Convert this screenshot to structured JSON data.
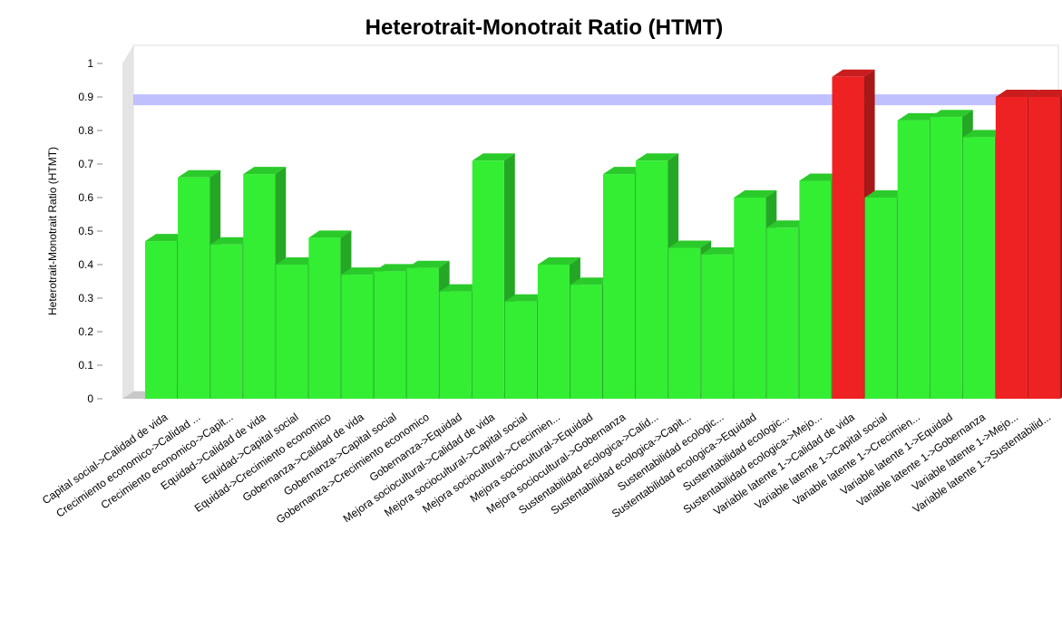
{
  "chart_data": {
    "type": "bar3d",
    "title": "Heterotrait-Monotrait Ratio (HTMT)",
    "y_label": "Heterotrait-Monotrait Ratio (HTMT)",
    "categories": [
      "Capital social->Calidad de vida",
      "Crecimiento economico->Calidad ...",
      "Crecimiento economico->Capit...",
      "Equidad->Calidad de vida",
      "Equidad->Capital social",
      "Equidad->Crecimiento economico",
      "Gobernanza->Calidad de vida",
      "Gobernanza->Capital social",
      "Gobernanza->Crecimiento economico",
      "Gobernanza->Equidad",
      "Mejora sociocultural->Calidad de vida",
      "Mejora sociocultural->Capital social",
      "Mejora sociocultural->Crecimien...",
      "Mejora sociocultural->Equidad",
      "Mejora sociocultural->Gobernanza",
      "Sustentabilidad ecologica->Calid...",
      "Sustentabilidad ecologica->Capit...",
      "Sustentabilidad ecologic...",
      "Sustentabilidad ecologica->Equidad",
      "Sustentabilidad ecologic...",
      "Sustentabilidad ecologica->Mejo...",
      "Variable latente 1->Calidad de vida",
      "Variable latente 1->Capital social",
      "Variable latente 1->Crecimien...",
      "Variable latente 1->Equidad",
      "Variable latente 1->Gobernanza",
      "Variable latente 1->Mejo...",
      "Variable latente 1->Sustentabilid..."
    ],
    "values": [
      0.47,
      0.66,
      0.46,
      0.67,
      0.4,
      0.48,
      0.37,
      0.38,
      0.39,
      0.32,
      0.71,
      0.29,
      0.4,
      0.34,
      0.67,
      0.71,
      0.45,
      0.43,
      0.6,
      0.51,
      0.65,
      0.96,
      0.6,
      0.83,
      0.84,
      0.78,
      0.9,
      0.9
    ],
    "colors": [
      "#33ee33",
      "#33ee33",
      "#33ee33",
      "#33ee33",
      "#33ee33",
      "#33ee33",
      "#33ee33",
      "#33ee33",
      "#33ee33",
      "#33ee33",
      "#33ee33",
      "#33ee33",
      "#33ee33",
      "#33ee33",
      "#33ee33",
      "#33ee33",
      "#33ee33",
      "#33ee33",
      "#33ee33",
      "#33ee33",
      "#33ee33",
      "#ee2222",
      "#33ee33",
      "#33ee33",
      "#33ee33",
      "#33ee33",
      "#ee2222",
      "#ee2222"
    ],
    "reference_line": 0.87,
    "reference_color": "#b0b0ff",
    "ylim": [
      0,
      1
    ],
    "yticks": [
      0,
      {
        "value": 0.1,
        "label": "0.1"
      },
      {
        "value": 0.2,
        "label": "0.2"
      },
      {
        "value": 0.3,
        "label": "0.3"
      },
      {
        "value": 0.4,
        "label": "0.4"
      },
      {
        "value": 0.5,
        "label": "0.5"
      },
      {
        "value": 0.6,
        "label": "0.6"
      },
      {
        "value": 0.7,
        "label": "0.7"
      },
      {
        "value": 0.8,
        "label": "0.8"
      },
      {
        "value": 0.9,
        "label": "0.9"
      },
      1
    ]
  }
}
